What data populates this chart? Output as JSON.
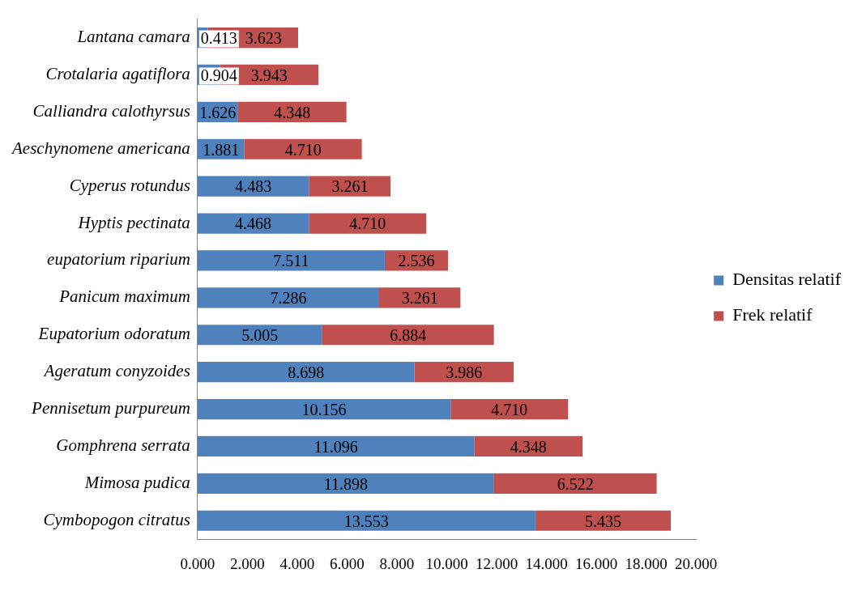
{
  "chart_data": {
    "type": "bar",
    "orientation": "horizontal",
    "stacked": true,
    "legend": "right",
    "grid": false,
    "categories": [
      "Lantana camara",
      "Crotalaria agatiflora",
      "Calliandra calothyrsus",
      "Aeschynomene americana",
      "Cyperus rotundus",
      "Hyptis pectinata",
      "eupatorium riparium",
      "Panicum maximum",
      "Eupatorium odoratum",
      "Ageratum conyzoides",
      "Pennisetum purpureum",
      "Gomphrena serrata",
      "Mimosa pudica",
      "Cymbopogon citratus"
    ],
    "series": [
      {
        "name": "Densitas relatif",
        "color": "#4f81bd",
        "values": [
          0.413,
          0.904,
          1.626,
          1.881,
          4.483,
          4.468,
          7.511,
          7.286,
          5.005,
          8.698,
          10.156,
          11.096,
          11.898,
          13.553
        ],
        "value_labels": [
          "0.413",
          "0.904",
          "1.626",
          "1.881",
          "4.483",
          "4.468",
          "7.511",
          "7.286",
          "5.005",
          "8.698",
          "10.156",
          "11.096",
          "11.898",
          "13.553"
        ]
      },
      {
        "name": "Frek relatif",
        "color": "#c0504d",
        "values": [
          3.623,
          3.943,
          4.348,
          4.71,
          3.261,
          4.71,
          2.536,
          3.261,
          6.884,
          3.986,
          4.71,
          4.348,
          6.522,
          5.435
        ],
        "value_labels": [
          "3.623",
          "3.943",
          "4.348",
          "4.710",
          "3.261",
          "4.710",
          "2.536",
          "3.261",
          "6.884",
          "3.986",
          "4.710",
          "4.348",
          "6.522",
          "5.435"
        ]
      }
    ],
    "xlim": [
      0,
      20
    ],
    "xticks": [
      {
        "value": 0,
        "label": "0.000"
      },
      {
        "value": 2,
        "label": "2.000"
      },
      {
        "value": 4,
        "label": "4.000"
      },
      {
        "value": 6,
        "label": "6.000"
      },
      {
        "value": 8,
        "label": "8.000"
      },
      {
        "value": 10,
        "label": "10.000"
      },
      {
        "value": 12,
        "label": "12.000"
      },
      {
        "value": 14,
        "label": "14.000"
      },
      {
        "value": 16,
        "label": "16.000"
      },
      {
        "value": 18,
        "label": "18.000"
      },
      {
        "value": 20,
        "label": "20.000"
      }
    ]
  }
}
